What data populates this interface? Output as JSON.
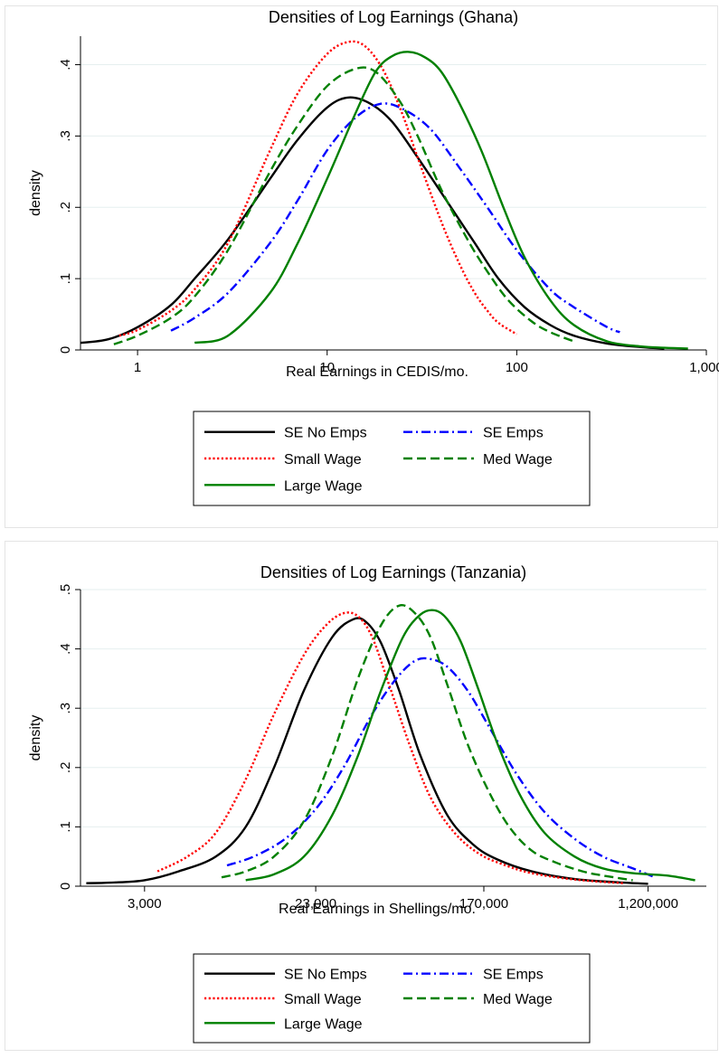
{
  "chart_data": [
    {
      "type": "line",
      "title": "Densities of Log Earnings (Ghana)",
      "xlabel": "Real Earnings in CEDIS/mo.",
      "ylabel": "density",
      "x_scale": "log",
      "xlim": [
        0.5,
        1000
      ],
      "ylim": [
        0,
        0.44
      ],
      "x_ticks": [
        1,
        10,
        100,
        1000
      ],
      "x_tick_labels": [
        "1",
        "10",
        "100",
        "1,000"
      ],
      "y_ticks": [
        0,
        0.1,
        0.2,
        0.3,
        0.4
      ],
      "y_tick_labels": [
        "0",
        ".1",
        ".2",
        ".3",
        ".4"
      ],
      "grid": "horizontal",
      "legend_position": "bottom",
      "series": [
        {
          "name": "SE No Emps",
          "color": "#000000",
          "dash": "solid",
          "x": [
            0.5,
            0.7,
            1,
            1.5,
            2,
            3,
            5,
            7,
            10,
            13,
            17,
            22,
            30,
            45,
            60,
            80,
            110,
            150,
            200,
            300,
            450,
            600
          ],
          "y": [
            0.01,
            0.015,
            0.032,
            0.063,
            0.1,
            0.155,
            0.24,
            0.295,
            0.34,
            0.354,
            0.345,
            0.32,
            0.27,
            0.2,
            0.15,
            0.1,
            0.06,
            0.035,
            0.02,
            0.009,
            0.004,
            0.002
          ]
        },
        {
          "name": "SE Emps",
          "color": "#0000ff",
          "dash": "dashdot",
          "x": [
            1.5,
            2,
            3,
            5,
            7,
            10,
            14,
            19,
            25,
            35,
            50,
            70,
            100,
            150,
            200,
            300,
            350
          ],
          "y": [
            0.027,
            0.045,
            0.08,
            0.15,
            0.21,
            0.28,
            0.325,
            0.345,
            0.338,
            0.31,
            0.255,
            0.2,
            0.14,
            0.085,
            0.06,
            0.032,
            0.025
          ]
        },
        {
          "name": "Small Wage",
          "color": "#ff0000",
          "dash": "dotted",
          "x": [
            0.8,
            1,
            1.5,
            2,
            3,
            5,
            7,
            10,
            13,
            16,
            20,
            25,
            30,
            40,
            50,
            60,
            70,
            80,
            100
          ],
          "y": [
            0.02,
            0.028,
            0.055,
            0.085,
            0.15,
            0.28,
            0.36,
            0.415,
            0.432,
            0.425,
            0.39,
            0.33,
            0.27,
            0.18,
            0.12,
            0.08,
            0.055,
            0.038,
            0.022
          ]
        },
        {
          "name": "Med Wage",
          "color": "#008000",
          "dash": "dashed",
          "x": [
            0.75,
            1,
            1.5,
            2,
            3,
            5,
            7,
            10,
            14,
            18,
            24,
            30,
            40,
            55,
            70,
            90,
            120,
            150,
            200
          ],
          "y": [
            0.008,
            0.02,
            0.045,
            0.075,
            0.14,
            0.25,
            0.315,
            0.37,
            0.394,
            0.39,
            0.35,
            0.3,
            0.225,
            0.155,
            0.11,
            0.07,
            0.04,
            0.025,
            0.012
          ]
        },
        {
          "name": "Large Wage",
          "color": "#008000",
          "dash": "solid",
          "x": [
            2,
            3,
            5,
            7,
            10,
            14,
            18,
            22,
            27,
            33,
            40,
            50,
            65,
            85,
            110,
            150,
            200,
            300,
            450,
            600,
            800
          ],
          "y": [
            0.01,
            0.02,
            0.08,
            0.15,
            0.24,
            0.33,
            0.39,
            0.412,
            0.418,
            0.41,
            0.39,
            0.345,
            0.28,
            0.2,
            0.13,
            0.07,
            0.035,
            0.012,
            0.005,
            0.003,
            0.002
          ]
        }
      ]
    },
    {
      "type": "line",
      "title": "Densities of Log Earnings (Tanzania)",
      "xlabel": "Real Earnings in Shellings/mo.",
      "ylabel": "density",
      "x_scale": "log",
      "xlim": [
        1400,
        2400000
      ],
      "ylim": [
        0,
        0.5
      ],
      "x_ticks": [
        3000,
        23000,
        170000,
        1200000
      ],
      "x_tick_labels": [
        "3,000",
        "23,000",
        "170,000",
        "1,200,000"
      ],
      "y_ticks": [
        0,
        0.1,
        0.2,
        0.3,
        0.4,
        0.5
      ],
      "y_tick_labels": [
        "0",
        ".1",
        ".2",
        ".3",
        ".4",
        ".5"
      ],
      "grid": "horizontal",
      "legend_position": "bottom",
      "series": [
        {
          "name": "SE No Emps",
          "color": "#000000",
          "dash": "solid",
          "x": [
            1500,
            2000,
            3000,
            4500,
            7000,
            10000,
            14000,
            20000,
            28000,
            36000,
            42000,
            50000,
            62000,
            80000,
            110000,
            150000,
            200000,
            300000,
            500000,
            800000,
            1200000
          ],
          "y": [
            0.005,
            0.006,
            0.01,
            0.025,
            0.05,
            0.1,
            0.2,
            0.33,
            0.42,
            0.45,
            0.445,
            0.41,
            0.33,
            0.22,
            0.12,
            0.07,
            0.045,
            0.025,
            0.012,
            0.007,
            0.004
          ]
        },
        {
          "name": "SE Emps",
          "color": "#0000ff",
          "dash": "dashdot",
          "x": [
            8000,
            11000,
            16000,
            23000,
            32000,
            45000,
            60000,
            75000,
            90000,
            110000,
            140000,
            180000,
            250000,
            350000,
            500000,
            700000,
            1000000,
            1300000
          ],
          "y": [
            0.035,
            0.05,
            0.08,
            0.13,
            0.2,
            0.29,
            0.35,
            0.38,
            0.383,
            0.37,
            0.33,
            0.27,
            0.19,
            0.125,
            0.08,
            0.05,
            0.03,
            0.015
          ]
        },
        {
          "name": "Small Wage",
          "color": "#ff0000",
          "dash": "dotted",
          "x": [
            3500,
            5000,
            7000,
            10000,
            14000,
            20000,
            26000,
            32000,
            38000,
            45000,
            55000,
            70000,
            90000,
            120000,
            160000,
            220000,
            300000,
            450000,
            650000,
            900000
          ],
          "y": [
            0.025,
            0.05,
            0.09,
            0.18,
            0.29,
            0.39,
            0.44,
            0.46,
            0.455,
            0.42,
            0.34,
            0.24,
            0.15,
            0.09,
            0.055,
            0.035,
            0.022,
            0.013,
            0.008,
            0.005
          ]
        },
        {
          "name": "Med Wage",
          "color": "#008000",
          "dash": "dashed",
          "x": [
            7500,
            10000,
            14000,
            20000,
            28000,
            38000,
            50000,
            62000,
            75000,
            90000,
            110000,
            140000,
            180000,
            230000,
            300000,
            400000,
            550000,
            700000,
            1000000
          ],
          "y": [
            0.015,
            0.025,
            0.05,
            0.11,
            0.22,
            0.35,
            0.44,
            0.473,
            0.46,
            0.42,
            0.34,
            0.24,
            0.16,
            0.1,
            0.06,
            0.04,
            0.025,
            0.018,
            0.01
          ]
        },
        {
          "name": "Large Wage",
          "color": "#008000",
          "dash": "solid",
          "x": [
            10000,
            14000,
            20000,
            28000,
            38000,
            50000,
            65000,
            80000,
            95000,
            110000,
            130000,
            160000,
            200000,
            260000,
            350000,
            500000,
            700000,
            1000000,
            1500000,
            2100000
          ],
          "y": [
            0.01,
            0.02,
            0.05,
            0.12,
            0.22,
            0.33,
            0.42,
            0.458,
            0.465,
            0.45,
            0.41,
            0.33,
            0.24,
            0.155,
            0.09,
            0.05,
            0.03,
            0.022,
            0.018,
            0.01
          ]
        }
      ]
    }
  ]
}
